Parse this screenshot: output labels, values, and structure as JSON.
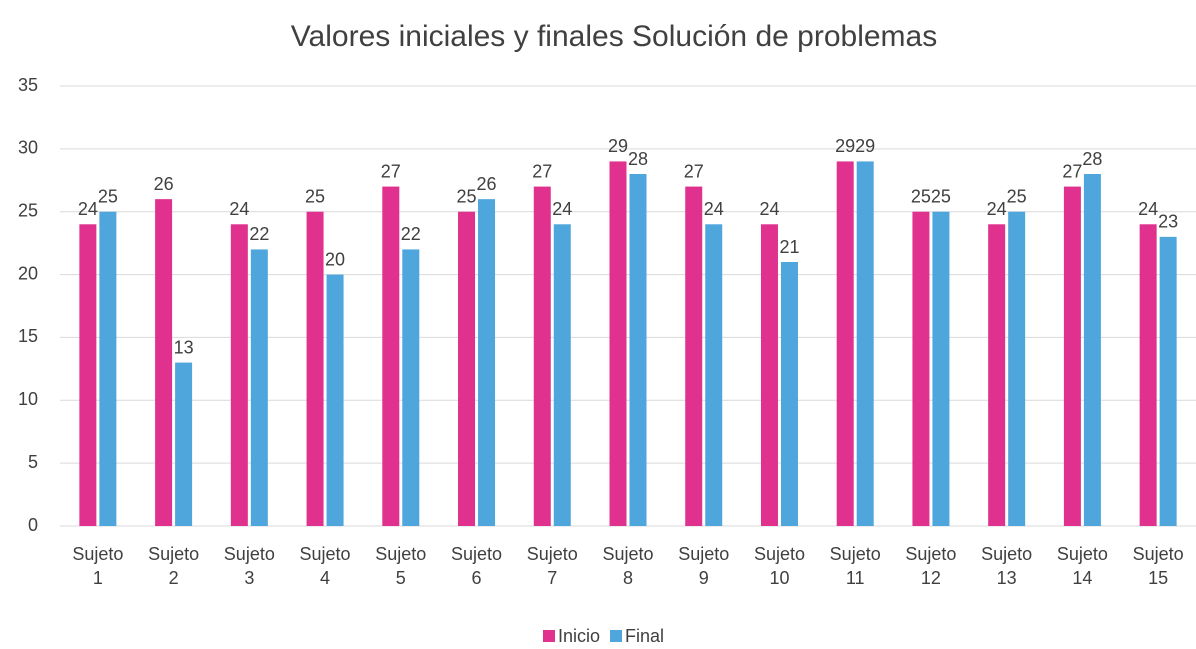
{
  "chart_data": {
    "type": "bar",
    "title": "Valores iniciales y finales Solución de problemas",
    "categories": [
      "Sujeto 1",
      "Sujeto 2",
      "Sujeto 3",
      "Sujeto 4",
      "Sujeto 5",
      "Sujeto 6",
      "Sujeto 7",
      "Sujeto 8",
      "Sujeto 9",
      "Sujeto 10",
      "Sujeto 11",
      "Sujeto 12",
      "Sujeto 13",
      "Sujeto 14",
      "Sujeto 15"
    ],
    "series": [
      {
        "name": "Inicio",
        "color": "#e0318f",
        "values": [
          24,
          26,
          24,
          25,
          27,
          25,
          27,
          29,
          27,
          24,
          29,
          25,
          24,
          27,
          24
        ]
      },
      {
        "name": "Final",
        "color": "#4fa6dc",
        "values": [
          25,
          13,
          22,
          20,
          22,
          26,
          24,
          28,
          24,
          21,
          29,
          25,
          25,
          28,
          23
        ]
      }
    ],
    "ylim": [
      0,
      35
    ],
    "yticks": [
      0,
      5,
      10,
      15,
      20,
      25,
      30,
      35
    ],
    "grid": true,
    "legend": "bottom"
  }
}
